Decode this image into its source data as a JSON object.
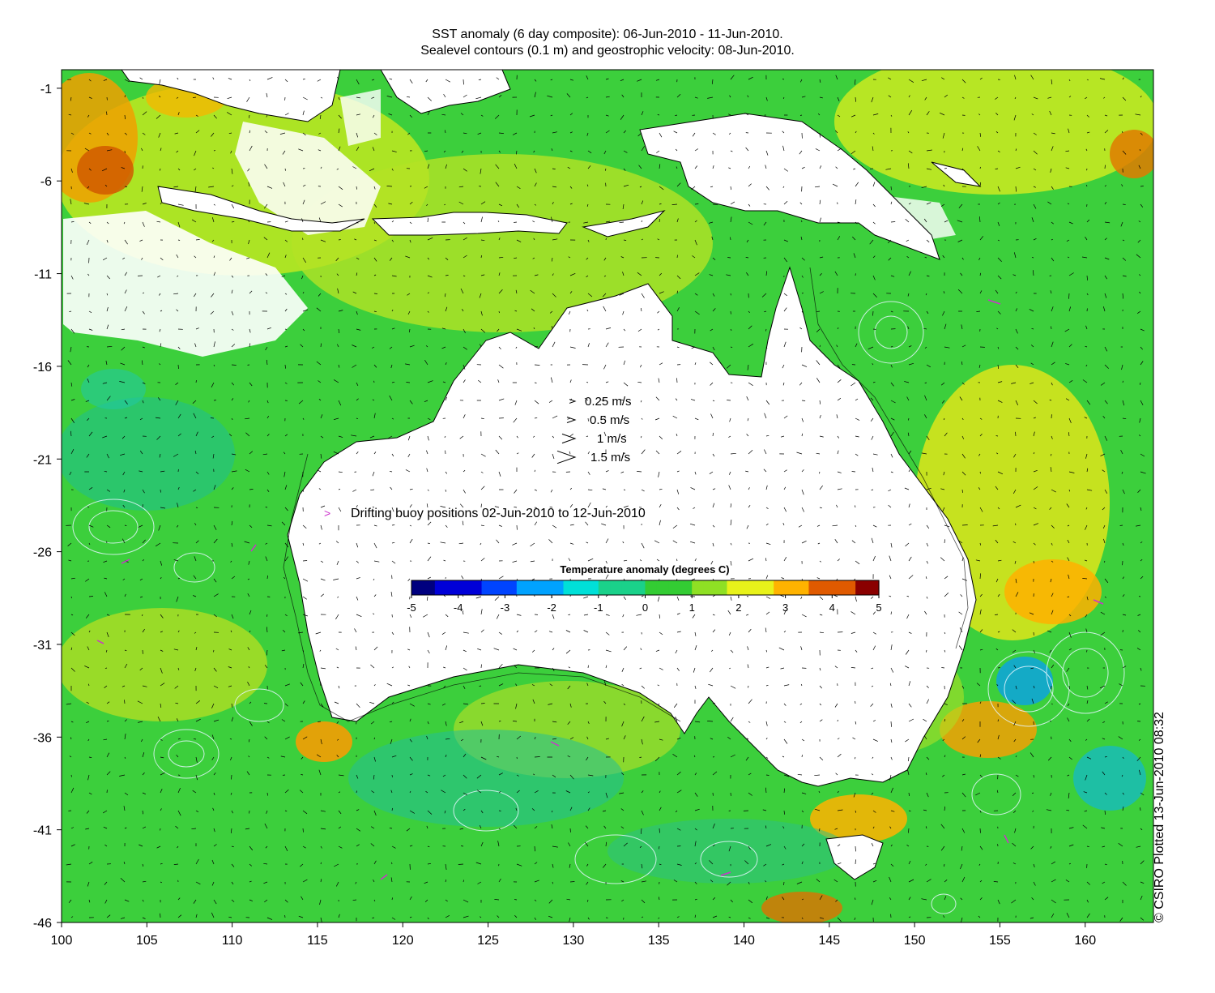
{
  "title_line1": "SST anomaly (6 day composite): 06-Jun-2010 - 11-Jun-2010.",
  "title_line2": "Sealevel contours (0.1 m) and geostrophic velocity: 08-Jun-2010.",
  "credit": "© CSIRO Plotted 13-Jun-2010 08:32",
  "axes": {
    "x_ticks": [
      "100",
      "105",
      "110",
      "115",
      "120",
      "125",
      "130",
      "135",
      "140",
      "145",
      "150",
      "155",
      "160"
    ],
    "y_ticks": [
      "-1",
      "-6",
      "-11",
      "-16",
      "-21",
      "-26",
      "-31",
      "-36",
      "-41",
      "-46"
    ],
    "lon_range": [
      100,
      164
    ],
    "lat_range": [
      -46,
      0
    ]
  },
  "velocity_legend": [
    {
      "speed": 0.25,
      "label": "0.25 m/s"
    },
    {
      "speed": 0.5,
      "label": "0.5 m/s"
    },
    {
      "speed": 1,
      "label": "1 m/s"
    },
    {
      "speed": 1.5,
      "label": "1.5 m/s"
    }
  ],
  "buoy_legend": {
    "symbol": ">",
    "label": "Drifting buoy positions 02-Jun-2010 to 12-Jun-2010",
    "color": "#cc33cc"
  },
  "colorbar": {
    "title": "Temperature anomaly (degrees C)",
    "ticks": [
      "-5",
      "-4",
      "-3",
      "-2",
      "-1",
      "0",
      "1",
      "2",
      "3",
      "4",
      "5"
    ],
    "range": [
      -5,
      5
    ],
    "colors": [
      "#00007f",
      "#0000d8",
      "#0044ff",
      "#00a2ff",
      "#00e0d8",
      "#1ad18a",
      "#33cc33",
      "#8fe024",
      "#e8f21a",
      "#ffb300",
      "#e05a00",
      "#8a0000"
    ]
  }
}
